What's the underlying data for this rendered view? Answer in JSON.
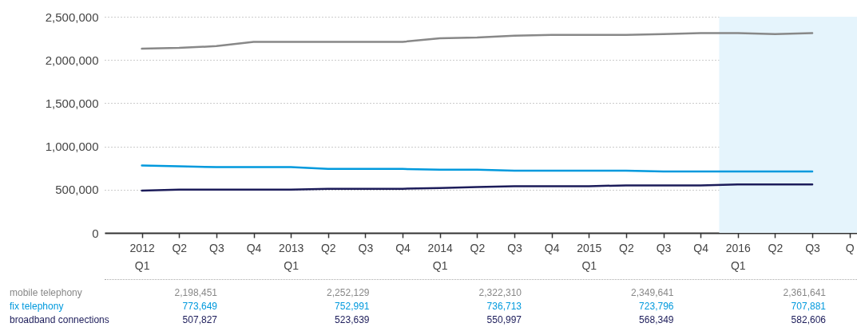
{
  "chart_data": [
    {
      "type": "line",
      "categories": [
        "2012 Q1",
        "Q2",
        "Q3",
        "Q4",
        "2013 Q1",
        "Q2",
        "Q3",
        "Q4",
        "2014 Q1",
        "Q2",
        "Q3",
        "Q4",
        "2015 Q1",
        "Q2",
        "Q3",
        "Q4",
        "2016 Q1",
        "Q2",
        "Q3",
        "Q"
      ],
      "series": [
        {
          "color": "#888888",
          "values": [
            2130000,
            2140000,
            2160000,
            2210000,
            2210000,
            2210000,
            2210000,
            2210000,
            2250000,
            2260000,
            2280000,
            2290000,
            2290000,
            2290000,
            2300000,
            2310000,
            2310000,
            2300000,
            2310000,
            null
          ]
        },
        {
          "color": "#0099dd",
          "values": [
            780000,
            770000,
            760000,
            760000,
            760000,
            740000,
            740000,
            740000,
            730000,
            730000,
            720000,
            720000,
            720000,
            720000,
            710000,
            710000,
            710000,
            710000,
            710000,
            null
          ]
        },
        {
          "color": "#1c1c5a",
          "values": [
            490000,
            500000,
            500000,
            500000,
            500000,
            510000,
            510000,
            510000,
            520000,
            530000,
            540000,
            540000,
            540000,
            550000,
            550000,
            550000,
            560000,
            560000,
            560000,
            null
          ]
        }
      ],
      "ylim": [
        0,
        2500000
      ],
      "yticks": [
        0,
        {
          "value": 500000,
          "label": "500,000"
        },
        {
          "value": 1000000,
          "label": "1,000,000"
        },
        {
          "value": 1500000,
          "label": "1,500,000"
        },
        {
          "value": 2000000,
          "label": "2,000,000"
        },
        {
          "value": 2500000,
          "label": "2,500,000"
        }
      ],
      "grid": "y",
      "line_style": "solid",
      "marker": "none",
      "bands": [
        {
          "axis": "x",
          "from": "2016 Q1",
          "to": "Q",
          "color": "#e5f4fc"
        }
      ]
    },
    {
      "type": "other",
      "annotations": [
        "mobile telephony",
        "2,198,451",
        "2,252,129",
        "2,322,310",
        "2,349,641",
        "2,361,641",
        "fix telephony",
        "773,649",
        "752,991",
        "736,713",
        "723,796",
        "707,881",
        "broadband connections",
        "507,827",
        "523,639",
        "550,997",
        "568,349",
        "582,606"
      ]
    }
  ]
}
